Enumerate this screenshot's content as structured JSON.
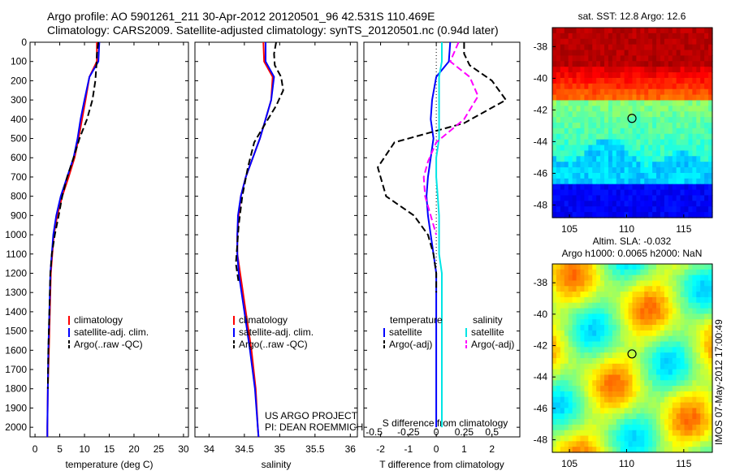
{
  "header": {
    "line1": "Argo profile: AO 5901261_211 30-Apr-2012 20120501_96 42.531S 110.469E",
    "line2": "Climatology: CARS2009. Satellite-adjusted climatology: synTS_20120501.nc (0.94d later)"
  },
  "timestamp": "IMOS 07-May-2012 17:00:49",
  "colors": {
    "climatology": "#ff0000",
    "satellite": "#0000ff",
    "argo": "#000000",
    "salinity_satellite": "#00e5e5",
    "salinity_argo": "#ff00ff"
  },
  "chart_data": [
    {
      "type": "line",
      "id": "temperature",
      "xlabel": "temperature (deg C)",
      "ylabel": "",
      "xlim": [
        -1,
        31
      ],
      "ylim": [
        2050,
        0
      ],
      "xticks": [
        0,
        5,
        10,
        15,
        20,
        25,
        30
      ],
      "yticks": [
        0,
        100,
        200,
        300,
        400,
        500,
        600,
        700,
        800,
        900,
        1000,
        1100,
        1200,
        1300,
        1400,
        1500,
        1600,
        1700,
        1800,
        1900,
        2000
      ],
      "legend": [
        "climatology",
        "satellite-adj. clim.",
        "Argo(..raw -QC)"
      ],
      "legend_position": "bottom-center",
      "series": [
        {
          "name": "climatology",
          "style": "solid",
          "color": "#ff0000",
          "x": [
            12.5,
            12.5,
            11.0,
            10.2,
            9.5,
            8.8,
            8.0,
            6.8,
            5.5,
            4.5,
            3.8,
            3.5,
            3.2,
            3.0,
            2.8,
            2.6,
            2.5,
            2.5
          ],
          "y": [
            0,
            100,
            180,
            300,
            400,
            500,
            600,
            700,
            800,
            900,
            1000,
            1100,
            1200,
            1400,
            1600,
            1800,
            2000,
            2050
          ]
        },
        {
          "name": "satellite-adj. clim.",
          "style": "solid",
          "color": "#0000ff",
          "x": [
            13.0,
            12.8,
            11.0,
            10.0,
            9.2,
            8.6,
            7.8,
            6.5,
            5.2,
            4.3,
            3.7,
            3.4,
            3.1,
            2.9,
            2.7,
            2.6,
            2.5,
            2.5
          ],
          "y": [
            0,
            100,
            180,
            300,
            400,
            500,
            600,
            700,
            800,
            900,
            1000,
            1100,
            1200,
            1400,
            1600,
            1800,
            2000,
            2050
          ]
        },
        {
          "name": "Argo(..raw -QC)",
          "style": "dashed",
          "color": "#000000",
          "x": [
            12.8,
            12.5,
            12.4,
            12.2,
            11.6,
            10.5,
            9.0,
            7.8,
            6.5,
            5.5,
            4.8,
            4.0,
            3.4,
            3.1,
            2.9,
            2.7,
            2.6
          ],
          "y": [
            0,
            60,
            120,
            200,
            300,
            400,
            500,
            600,
            700,
            800,
            900,
            1000,
            1100,
            1200,
            1400,
            1600,
            1800
          ]
        }
      ]
    },
    {
      "type": "line",
      "id": "salinity",
      "xlabel": "salinity",
      "ylabel": "",
      "xlim": [
        33.8,
        36.1
      ],
      "ylim": [
        2050,
        0
      ],
      "xticks": [
        34,
        34.5,
        35,
        35.5,
        36
      ],
      "legend": [
        "climatology",
        "satellite-adj. clim.",
        "Argo(..raw -QC)"
      ],
      "legend_position": "bottom-center",
      "annotation": [
        "US ARGO PROJECT",
        "PI: DEAN ROEMMICH"
      ],
      "series": [
        {
          "name": "climatology",
          "style": "solid",
          "color": "#ff0000",
          "x": [
            34.77,
            34.78,
            34.9,
            34.88,
            34.8,
            34.72,
            34.62,
            34.52,
            34.45,
            34.42,
            34.4,
            34.4,
            34.44,
            34.52,
            34.6,
            34.66,
            34.69,
            34.7
          ],
          "y": [
            0,
            100,
            180,
            300,
            400,
            500,
            600,
            700,
            800,
            900,
            1000,
            1100,
            1200,
            1400,
            1600,
            1800,
            2000,
            2050
          ]
        },
        {
          "name": "satellite-adj. clim.",
          "style": "solid",
          "color": "#0000ff",
          "x": [
            34.8,
            34.8,
            34.92,
            34.88,
            34.8,
            34.72,
            34.62,
            34.52,
            34.45,
            34.41,
            34.4,
            34.4,
            34.42,
            34.5,
            34.58,
            34.65,
            34.69,
            34.7
          ],
          "y": [
            0,
            100,
            180,
            300,
            400,
            500,
            600,
            700,
            800,
            900,
            1000,
            1100,
            1200,
            1400,
            1600,
            1800,
            2000,
            2050
          ]
        },
        {
          "name": "Argo(..raw -QC)",
          "style": "dashed",
          "color": "#000000",
          "x": [
            34.95,
            34.92,
            34.93,
            35.02,
            35.05,
            34.95,
            34.8,
            34.64,
            34.55,
            34.47,
            34.42,
            34.4,
            34.38,
            34.42
          ],
          "y": [
            0,
            60,
            120,
            180,
            250,
            330,
            420,
            520,
            650,
            800,
            950,
            1050,
            1150,
            1250
          ]
        }
      ]
    },
    {
      "type": "line",
      "id": "difference",
      "xlabel": "T difference from climatology",
      "xlabel_top": "S difference from climatology",
      "xlim": [
        -2.6,
        3.0
      ],
      "ylim": [
        2050,
        0
      ],
      "xticks": [
        -2,
        -1,
        0,
        1,
        2
      ],
      "s_ticks_labels": [
        "-0.5",
        "-0.25",
        "0",
        "0.25",
        "0.5"
      ],
      "legend_groups": {
        "temperature": [
          "satellite",
          "Argo(-adj)"
        ],
        "salinity": [
          "satellite",
          "Argo(-adj)"
        ]
      },
      "legend_position": "bottom-center",
      "series": [
        {
          "name": "satellite",
          "group": "temperature",
          "style": "solid",
          "color": "#0000ff",
          "x": [
            0.5,
            0.45,
            0.0,
            -0.15,
            -0.2,
            -0.1,
            -0.2,
            -0.3,
            -0.35,
            -0.3,
            -0.2,
            -0.1,
            0,
            0,
            0,
            0,
            0
          ],
          "y": [
            0,
            100,
            180,
            300,
            400,
            500,
            600,
            700,
            800,
            900,
            1000,
            1100,
            1200,
            1400,
            1600,
            1800,
            2000
          ]
        },
        {
          "name": "Argo(-adj)",
          "group": "temperature",
          "style": "dashed",
          "color": "#000000",
          "x": [
            1.0,
            1.0,
            1.2,
            2.0,
            2.5,
            1.0,
            -1.5,
            -2.1,
            -1.8,
            -0.8,
            -0.3,
            -0.1,
            0,
            0
          ],
          "y": [
            0,
            60,
            120,
            200,
            300,
            420,
            520,
            650,
            800,
            900,
            1000,
            1100,
            1200,
            1300
          ]
        },
        {
          "name": "satellite",
          "group": "salinity",
          "style": "solid",
          "color": "#00e5e5",
          "x": [
            0.2,
            0.2,
            0.1,
            0.1,
            0.1,
            0.1,
            0.0,
            0.0,
            0.05,
            0.1,
            0.1,
            0.1,
            0.2,
            0.2,
            0.2,
            0.2,
            0.2
          ],
          "y": [
            0,
            100,
            180,
            300,
            400,
            500,
            600,
            700,
            800,
            900,
            1000,
            1100,
            1200,
            1400,
            1600,
            1800,
            2000
          ]
        },
        {
          "name": "Argo(-adj)",
          "group": "salinity",
          "style": "dashed",
          "color": "#ff00ff",
          "x": [
            0.8,
            0.5,
            1.2,
            1.5,
            1.0,
            0.0,
            -0.3,
            -0.45,
            -0.4,
            -0.2,
            0.0
          ],
          "y": [
            0,
            100,
            180,
            280,
            400,
            520,
            620,
            700,
            800,
            900,
            1000
          ]
        }
      ]
    },
    {
      "type": "heatmap",
      "id": "sst-map",
      "title": "sat. SST: 12.8 Argo: 12.6",
      "xlim": [
        103.5,
        117.5
      ],
      "ylim": [
        -48.8,
        -36.8
      ],
      "xticks": [
        105,
        110,
        115
      ],
      "yticks": [
        -38,
        -40,
        -42,
        -44,
        -46,
        -48
      ],
      "marker": {
        "lon": 110.469,
        "lat": -42.531
      }
    },
    {
      "type": "heatmap",
      "id": "sla-map",
      "title_lines": [
        "Altim. SLA: -0.032",
        "Argo h1000: 0.0065 h2000: NaN"
      ],
      "xlim": [
        103.5,
        117.5
      ],
      "ylim": [
        -48.8,
        -36.8
      ],
      "xticks": [
        105,
        110,
        115
      ],
      "yticks": [
        -38,
        -40,
        -42,
        -44,
        -46,
        -48
      ],
      "marker": {
        "lon": 110.469,
        "lat": -42.531
      }
    }
  ]
}
